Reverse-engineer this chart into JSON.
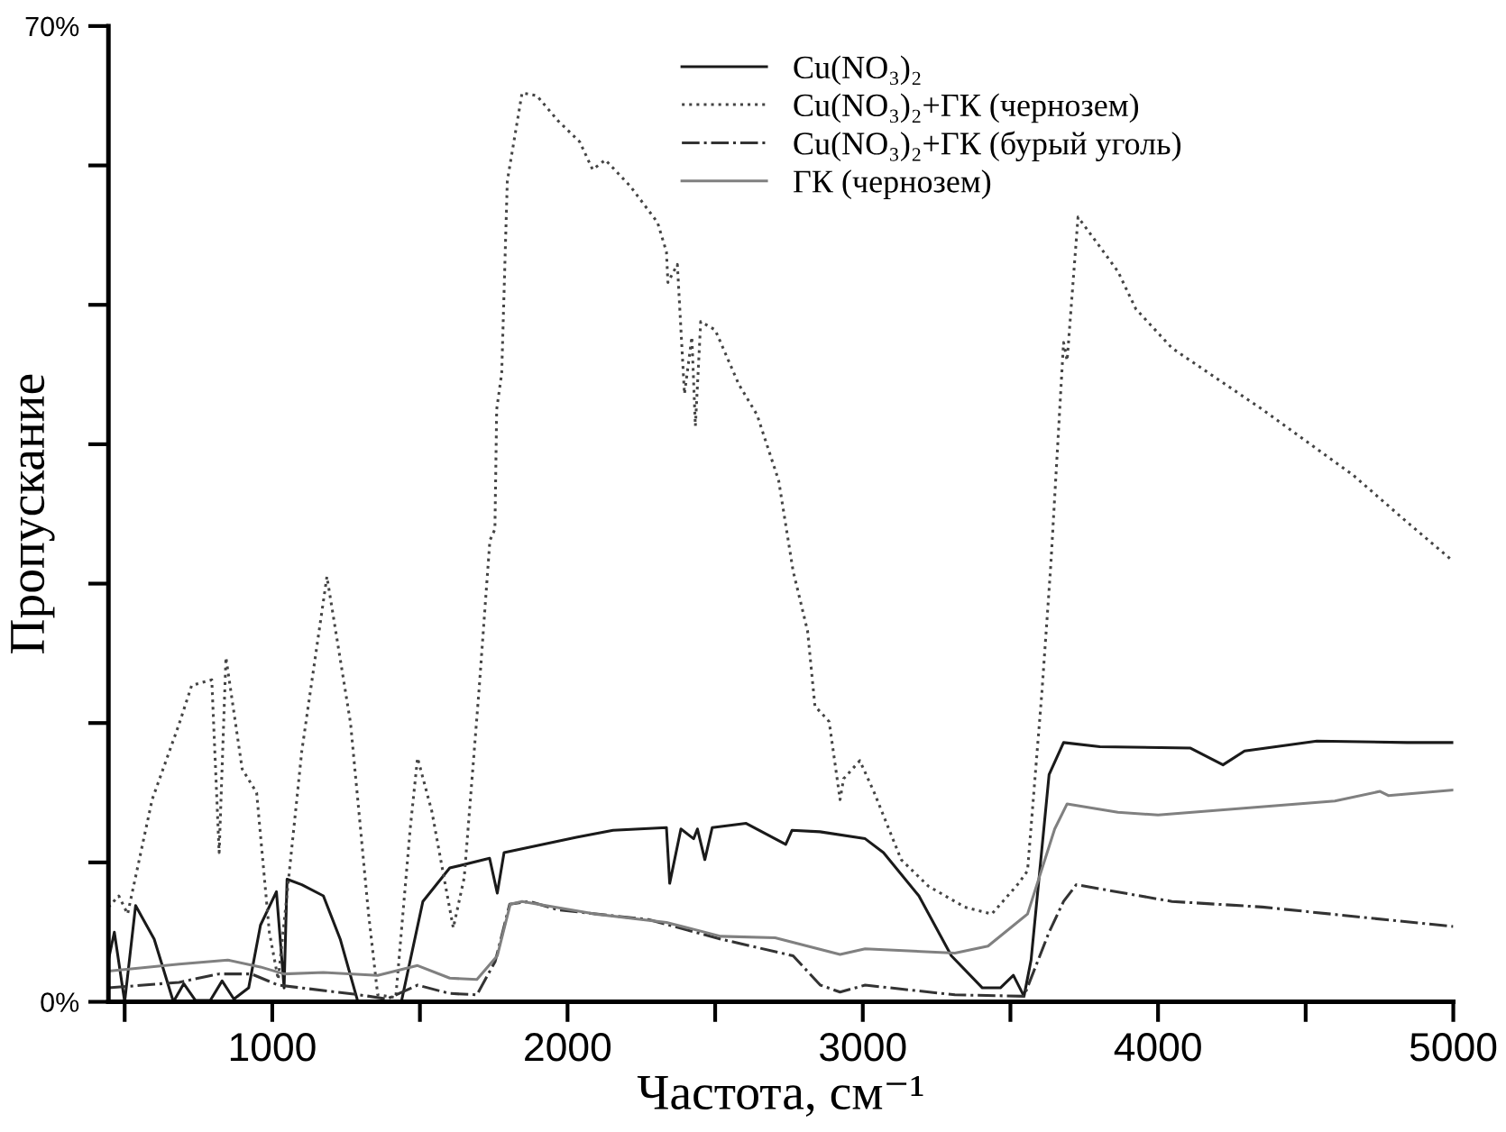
{
  "chart_data": {
    "type": "line",
    "xlabel": "Частота, см⁻¹",
    "ylabel": "Пропускание",
    "xlim": [
      445,
      5000
    ],
    "ylim": [
      0,
      70
    ],
    "xticks": [
      {
        "value": 500,
        "label": null
      },
      1000,
      {
        "value": 1500,
        "label": null
      },
      2000,
      {
        "value": 2500,
        "label": null
      },
      3000,
      {
        "value": 3500,
        "label": null
      },
      4000,
      {
        "value": 4500,
        "label": null
      },
      5000
    ],
    "yticks": [
      {
        "value": 0,
        "label": "0%"
      },
      {
        "value": 10,
        "label": null
      },
      {
        "value": 20,
        "label": null
      },
      {
        "value": 30,
        "label": null
      },
      {
        "value": 40,
        "label": null
      },
      {
        "value": 50,
        "label": null
      },
      {
        "value": 60,
        "label": null
      },
      {
        "value": 70,
        "label": "70%"
      }
    ],
    "grid": false,
    "legend": "top right",
    "series": [
      {
        "name": "Cu(NO₃)₂",
        "color": "#1a1a1a",
        "line_style": "solid",
        "x": [
          445,
          465,
          500,
          537,
          600,
          665,
          700,
          740,
          790,
          830,
          870,
          920,
          960,
          1014,
          1040,
          1050,
          1100,
          1173,
          1230,
          1290,
          1437,
          1510,
          1601,
          1736,
          1762,
          1785,
          2030,
          2154,
          2335,
          2346,
          2384,
          2427,
          2440,
          2465,
          2490,
          2605,
          2739,
          2760,
          2855,
          3008,
          3070,
          3190,
          3300,
          3405,
          3466,
          3510,
          3546,
          3570,
          3631,
          3680,
          3803,
          4110,
          4220,
          4293,
          4538,
          4844,
          5000
        ],
        "values": [
          3,
          5.0,
          0,
          6.9,
          4.5,
          0,
          1.3,
          0.1,
          0.1,
          1.5,
          0.2,
          1.0,
          5.5,
          7.9,
          1.0,
          8.8,
          8.4,
          7.6,
          4.5,
          0,
          0,
          7.2,
          9.6,
          10.3,
          7.8,
          10.7,
          11.8,
          12.3,
          12.5,
          8.5,
          12.4,
          11.7,
          12.4,
          10.2,
          12.5,
          12.8,
          11.3,
          12.3,
          12.2,
          11.7,
          10.7,
          7.6,
          3.3,
          1.0,
          1.0,
          1.9,
          0.4,
          3.0,
          16.3,
          18.6,
          18.3,
          18.2,
          17.0,
          18.0,
          18.7,
          18.6,
          18.6
        ]
      },
      {
        "name": "Cu(NO₃)₂+ГК (чернозем)",
        "color": "#444444",
        "line_style": "dotted",
        "x": [
          445,
          480,
          510,
          593,
          684,
          727,
          795,
          820,
          843,
          898,
          947,
          990,
          1020,
          1100,
          1185,
          1265,
          1326,
          1357,
          1418,
          1467,
          1492,
          1540,
          1613,
          1650,
          1700,
          1737,
          1754,
          1760,
          1777,
          1796,
          1846,
          1896,
          1968,
          2041,
          2085,
          2128,
          2213,
          2305,
          2335,
          2340,
          2372,
          2396,
          2421,
          2433,
          2451,
          2500,
          2580,
          2642,
          2715,
          2764,
          2813,
          2838,
          2856,
          2886,
          2923,
          2935,
          2990,
          3039,
          3130,
          3222,
          3345,
          3437,
          3528,
          3558,
          3607,
          3637,
          3680,
          3692,
          3729,
          3864,
          3925,
          4047,
          4353,
          4660,
          4844,
          5000
        ],
        "values": [
          6.8,
          7.6,
          6.3,
          14.5,
          19.9,
          22.7,
          23.1,
          10.7,
          24.7,
          16.7,
          15.0,
          5.0,
          1.6,
          18,
          30.5,
          20,
          6.3,
          0.5,
          0.3,
          12.4,
          17.5,
          13.7,
          5.3,
          8.9,
          22.3,
          33.1,
          33.9,
          42.5,
          45.1,
          58.9,
          65.2,
          65.0,
          63.2,
          61.7,
          59.7,
          60.4,
          58.5,
          55.9,
          53.8,
          51.6,
          52.9,
          43.6,
          47.7,
          41.3,
          48.8,
          48.2,
          44.3,
          42.1,
          37.4,
          30.9,
          26.6,
          21.2,
          20.8,
          20.1,
          14.5,
          16.0,
          17.3,
          15.0,
          10.2,
          8.3,
          6.8,
          6.3,
          8.5,
          9.4,
          22.3,
          31.4,
          47.3,
          46.0,
          56.3,
          52.4,
          49.7,
          46.9,
          42.5,
          37.8,
          34.4,
          31.6
        ]
      },
      {
        "name": "Cu(NO₃)₂+ГК (бурый уголь)",
        "color": "#333333",
        "line_style": "dashdot",
        "x": [
          445,
          684,
          820,
          929,
          1020,
          1296,
          1388,
          1492,
          1600,
          1693,
          1755,
          1804,
          1870,
          1968,
          2274,
          2519,
          2764,
          2856,
          2923,
          3008,
          3312,
          3546,
          3631,
          3680,
          3723,
          4047,
          4353,
          5000
        ],
        "values": [
          1.0,
          1.4,
          2.0,
          2.0,
          1.2,
          0.5,
          0.2,
          1.2,
          0.6,
          0.5,
          2.9,
          7.0,
          7.2,
          6.6,
          5.9,
          4.5,
          3.3,
          1.2,
          0.7,
          1.2,
          0.5,
          0.4,
          5.0,
          7.2,
          8.4,
          7.2,
          6.8,
          5.4
        ]
      },
      {
        "name": "ГК (чернозем)",
        "color": "#808080",
        "line_style": "solid",
        "x": [
          445,
          684,
          849,
          960,
          1040,
          1173,
          1357,
          1492,
          1601,
          1693,
          1762,
          1806,
          1846,
          2091,
          2335,
          2519,
          2703,
          2923,
          3008,
          3312,
          3424,
          3558,
          3650,
          3692,
          3864,
          4000,
          4599,
          4752,
          4780,
          5000
        ],
        "values": [
          2.2,
          2.7,
          3.0,
          2.5,
          2.0,
          2.1,
          1.9,
          2.6,
          1.7,
          1.6,
          3.3,
          7.0,
          7.2,
          6.3,
          5.7,
          4.7,
          4.6,
          3.4,
          3.8,
          3.5,
          4.0,
          6.3,
          12.4,
          14.2,
          13.6,
          13.4,
          14.4,
          15.1,
          14.8,
          15.2
        ]
      }
    ]
  }
}
